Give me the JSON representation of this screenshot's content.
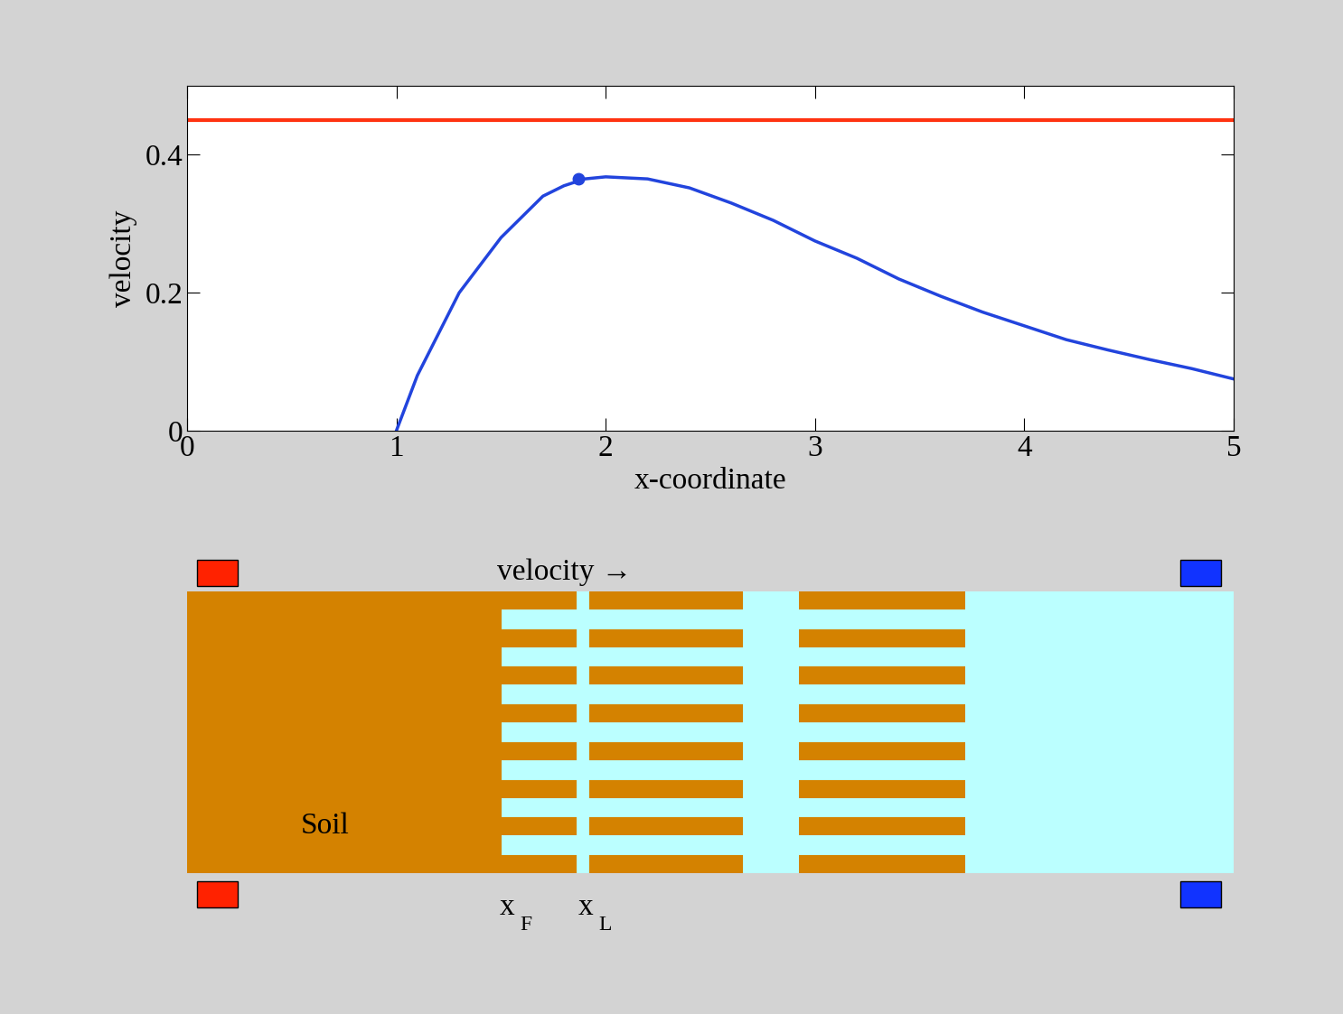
{
  "chart_data": {
    "type": "line",
    "xlabel": "x-coordinate",
    "ylabel": "velocity",
    "x": [
      1.0,
      1.1,
      1.2,
      1.3,
      1.4,
      1.5,
      1.6,
      1.7,
      1.8,
      1.9,
      2.0,
      2.2,
      2.4,
      2.6,
      2.8,
      3.0,
      3.2,
      3.4,
      3.6,
      3.8,
      4.0,
      4.2,
      4.4,
      4.6,
      4.8,
      5.0
    ],
    "values": [
      0.0,
      0.08,
      0.14,
      0.2,
      0.24,
      0.28,
      0.31,
      0.34,
      0.355,
      0.365,
      0.368,
      0.365,
      0.352,
      0.33,
      0.305,
      0.275,
      0.25,
      0.22,
      0.195,
      0.172,
      0.152,
      0.132,
      0.117,
      0.103,
      0.09,
      0.075
    ],
    "color": "#2244dd",
    "reference_value": 0.45,
    "reference_color": "#ff3311",
    "marked_point": {
      "x": 1.87,
      "y": 0.365
    },
    "xlim": [
      0,
      5
    ],
    "xticks": [
      0,
      1,
      2,
      3,
      4,
      5
    ],
    "ylim": [
      0,
      0.5
    ],
    "yticks": [
      0,
      0.2,
      0.4
    ],
    "grid": false
  },
  "diagram": {
    "flow_label": "velocity →",
    "soil_label": "Soil",
    "front_label": {
      "base": "x",
      "sub": "F"
    },
    "lead_label": {
      "base": "x",
      "sub": "L"
    }
  }
}
